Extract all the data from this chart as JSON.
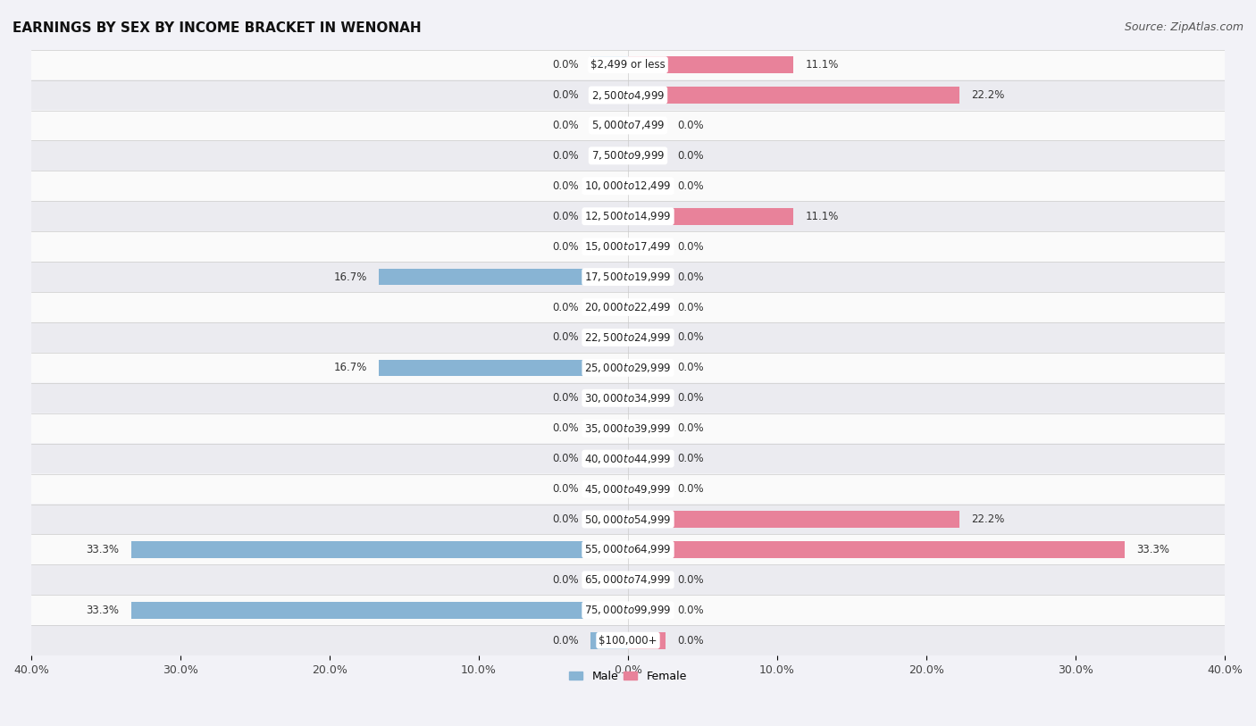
{
  "title": "EARNINGS BY SEX BY INCOME BRACKET IN WENONAH",
  "source": "Source: ZipAtlas.com",
  "categories": [
    "$2,499 or less",
    "$2,500 to $4,999",
    "$5,000 to $7,499",
    "$7,500 to $9,999",
    "$10,000 to $12,499",
    "$12,500 to $14,999",
    "$15,000 to $17,499",
    "$17,500 to $19,999",
    "$20,000 to $22,499",
    "$22,500 to $24,999",
    "$25,000 to $29,999",
    "$30,000 to $34,999",
    "$35,000 to $39,999",
    "$40,000 to $44,999",
    "$45,000 to $49,999",
    "$50,000 to $54,999",
    "$55,000 to $64,999",
    "$65,000 to $74,999",
    "$75,000 to $99,999",
    "$100,000+"
  ],
  "male_values": [
    0.0,
    0.0,
    0.0,
    0.0,
    0.0,
    0.0,
    0.0,
    16.7,
    0.0,
    0.0,
    16.7,
    0.0,
    0.0,
    0.0,
    0.0,
    0.0,
    33.3,
    0.0,
    33.3,
    0.0
  ],
  "female_values": [
    11.1,
    22.2,
    0.0,
    0.0,
    0.0,
    11.1,
    0.0,
    0.0,
    0.0,
    0.0,
    0.0,
    0.0,
    0.0,
    0.0,
    0.0,
    22.2,
    33.3,
    0.0,
    0.0,
    0.0
  ],
  "male_color": "#88b4d4",
  "female_color": "#e8829a",
  "male_label": "Male",
  "female_label": "Female",
  "xlim": 40.0,
  "min_bar": 2.5,
  "bar_height": 0.55,
  "background_color": "#f2f2f7",
  "row_colors": [
    "#fafafa",
    "#ebebf0"
  ],
  "title_fontsize": 11,
  "source_fontsize": 9,
  "label_fontsize": 8.5,
  "value_fontsize": 8.5,
  "tick_fontsize": 9,
  "legend_fontsize": 9
}
